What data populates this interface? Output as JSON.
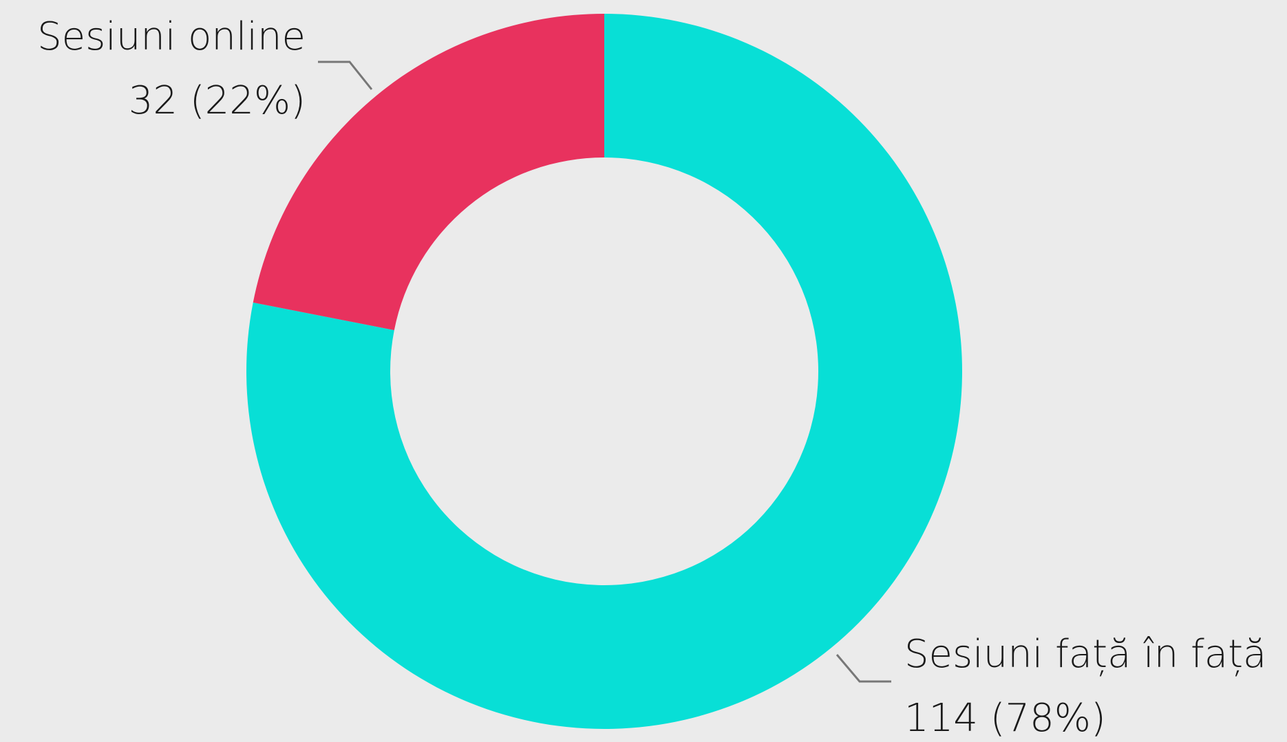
{
  "chart_data": {
    "type": "pie",
    "variant": "donut",
    "title": "",
    "slices": [
      {
        "name": "Sesiuni față în față",
        "value": 114,
        "percent_label": "114 (78%)",
        "color": "#08dfd6"
      },
      {
        "name": "Sesiuni online",
        "value": 32,
        "percent_label": "32 (22%)",
        "color": "#e8325e"
      }
    ],
    "legend": "none",
    "background": "#ebebeb"
  }
}
